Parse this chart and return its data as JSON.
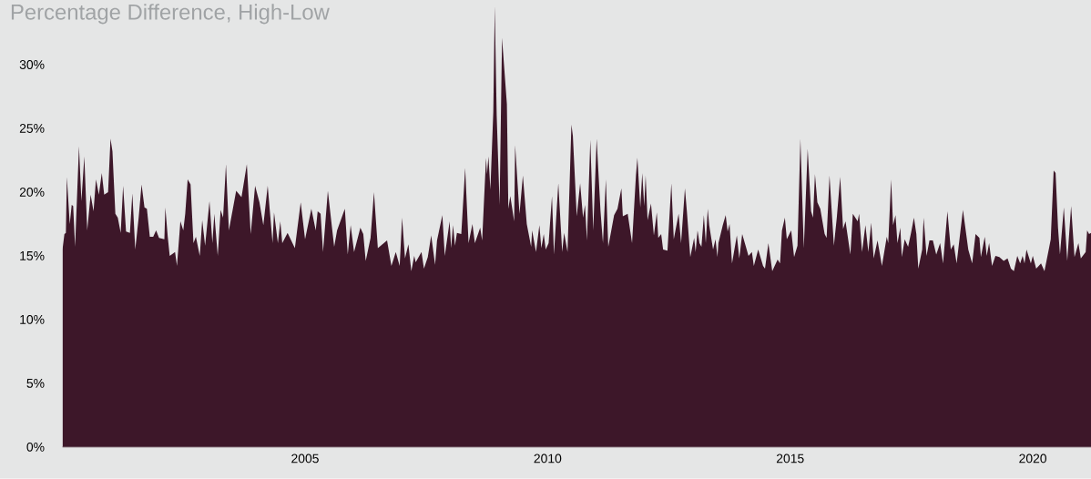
{
  "chart_data": {
    "type": "area",
    "title": "Percentage Difference, High-Low",
    "color": "#3d1729",
    "x": [
      2000.0,
      2000.04,
      2000.07,
      2000.09,
      2000.15,
      2000.19,
      2000.22,
      2000.26,
      2000.34,
      2000.39,
      2000.45,
      2000.51,
      2000.58,
      2000.64,
      2000.69,
      2000.75,
      2000.81,
      2000.86,
      2000.94,
      2000.99,
      2001.03,
      2001.09,
      2001.14,
      2001.2,
      2001.25,
      2001.31,
      2001.39,
      2001.44,
      2001.5,
      2001.57,
      2001.63,
      2001.69,
      2001.74,
      2001.8,
      2001.87,
      2001.93,
      2001.99,
      2002.1,
      2002.12,
      2002.17,
      2002.21,
      2002.32,
      2002.36,
      2002.43,
      2002.49,
      2002.53,
      2002.58,
      2002.64,
      2002.7,
      2002.75,
      2002.83,
      2002.88,
      2002.94,
      2003.03,
      2003.09,
      2003.13,
      2003.2,
      2003.26,
      2003.31,
      2003.37,
      2003.43,
      2003.58,
      2003.69,
      2003.8,
      2003.88,
      2003.97,
      2004.06,
      2004.14,
      2004.23,
      2004.33,
      2004.36,
      2004.44,
      2004.49,
      2004.53,
      2004.64,
      2004.79,
      2004.91,
      2005.0,
      2005.13,
      2005.22,
      2005.26,
      2005.32,
      2005.37,
      2005.47,
      2005.6,
      2005.66,
      2005.82,
      2005.88,
      2005.94,
      2006.01,
      2006.14,
      2006.2,
      2006.25,
      2006.35,
      2006.42,
      2006.5,
      2006.69,
      2006.78,
      2006.87,
      2006.95,
      2007.0,
      2007.06,
      2007.13,
      2007.19,
      2007.25,
      2007.28,
      2007.4,
      2007.45,
      2007.53,
      2007.6,
      2007.68,
      2007.72,
      2007.83,
      2007.88,
      2007.98,
      2008.01,
      2008.05,
      2008.09,
      2008.13,
      2008.22,
      2008.3,
      2008.37,
      2008.45,
      2008.5,
      2008.61,
      2008.65,
      2008.73,
      2008.75,
      2008.78,
      2008.82,
      2008.88,
      2008.91,
      2008.95,
      2009.01,
      2009.06,
      2009.16,
      2009.19,
      2009.23,
      2009.31,
      2009.33,
      2009.42,
      2009.49,
      2009.57,
      2009.66,
      2009.68,
      2009.76,
      2009.83,
      2009.87,
      2009.92,
      2009.96,
      2010.02,
      2010.09,
      2010.13,
      2010.22,
      2010.3,
      2010.34,
      2010.41,
      2010.49,
      2010.52,
      2010.6,
      2010.67,
      2010.73,
      2010.77,
      2010.81,
      2010.88,
      2010.94,
      2011.01,
      2011.09,
      2011.14,
      2011.2,
      2011.25,
      2011.37,
      2011.44,
      2011.52,
      2011.55,
      2011.65,
      2011.74,
      2011.82,
      2011.85,
      2011.91,
      2011.95,
      2011.99,
      2012.02,
      2012.06,
      2012.13,
      2012.19,
      2012.25,
      2012.28,
      2012.34,
      2012.38,
      2012.47,
      2012.55,
      2012.6,
      2012.7,
      2012.75,
      2012.83,
      2012.87,
      2012.94,
      2013.02,
      2013.05,
      2013.09,
      2013.13,
      2013.17,
      2013.22,
      2013.26,
      2013.3,
      2013.33,
      2013.41,
      2013.46,
      2013.5,
      2013.52,
      2013.61,
      2013.67,
      2013.71,
      2013.75,
      2013.8,
      2013.9,
      2013.95,
      2014.01,
      2014.08,
      2014.14,
      2014.21,
      2014.25,
      2014.34,
      2014.44,
      2014.48,
      2014.55,
      2014.63,
      2014.74,
      2014.79,
      2014.83,
      2014.89,
      2014.93,
      2015.02,
      2015.08,
      2015.15,
      2015.21,
      2015.28,
      2015.36,
      2015.43,
      2015.47,
      2015.51,
      2015.56,
      2015.62,
      2015.71,
      2015.75,
      2015.81,
      2015.9,
      2015.96,
      2016.03,
      2016.09,
      2016.14,
      2016.24,
      2016.29,
      2016.39,
      2016.42,
      2016.48,
      2016.55,
      2016.61,
      2016.67,
      2016.72,
      2016.8,
      2016.89,
      2016.99,
      2017.02,
      2017.08,
      2017.12,
      2017.17,
      2017.21,
      2017.27,
      2017.3,
      2017.36,
      2017.43,
      2017.49,
      2017.55,
      2017.6,
      2017.64,
      2017.72,
      2017.75,
      2017.81,
      2017.87,
      2017.94,
      2018.01,
      2018.09,
      2018.15,
      2018.24,
      2018.31,
      2018.37,
      2018.43,
      2018.56,
      2018.67,
      2018.75,
      2018.82,
      2018.9,
      2018.93,
      2019.01,
      2019.05,
      2019.1,
      2019.16,
      2019.23,
      2019.31,
      2019.4,
      2019.48,
      2019.55,
      2019.61,
      2019.68,
      2019.74,
      2019.79,
      2019.83,
      2019.87,
      2019.96,
      2020.0,
      2020.07,
      2020.17,
      2020.24,
      2020.34,
      2020.37,
      2020.43,
      2020.47,
      2020.52,
      2020.56,
      2020.64,
      2020.71,
      2020.79,
      2020.86,
      2020.94,
      2020.99,
      2021.09,
      2021.12,
      2021.16,
      2021.2
    ],
    "values": [
      15.5,
      16.7,
      16.8,
      21.2,
      17.5,
      19.0,
      18.9,
      15.7,
      23.6,
      19.3,
      22.8,
      17.0,
      19.8,
      18.5,
      21.0,
      19.8,
      21.5,
      19.8,
      20.0,
      24.2,
      23.2,
      18.3,
      18.0,
      16.8,
      20.5,
      16.9,
      16.8,
      19.9,
      15.5,
      18.0,
      20.6,
      18.8,
      18.7,
      16.5,
      16.5,
      17.0,
      16.4,
      16.3,
      18.8,
      16.5,
      15.0,
      15.3,
      14.2,
      17.7,
      17.0,
      18.3,
      21.0,
      20.6,
      16.0,
      16.5,
      15.0,
      17.8,
      15.8,
      19.3,
      16.0,
      18.3,
      15.0,
      18.6,
      18.0,
      22.2,
      17.0,
      20.1,
      19.6,
      22.2,
      16.7,
      20.5,
      19.2,
      17.4,
      20.5,
      16.0,
      18.4,
      16.0,
      17.7,
      16.0,
      16.8,
      15.6,
      19.2,
      16.3,
      18.7,
      17.0,
      18.5,
      18.3,
      15.3,
      20.1,
      15.7,
      17.0,
      18.7,
      15.1,
      17.4,
      15.3,
      17.2,
      16.7,
      14.6,
      16.4,
      20.0,
      15.6,
      16.2,
      14.2,
      15.3,
      14.2,
      18.0,
      14.8,
      15.9,
      13.8,
      15.0,
      14.5,
      15.3,
      14.0,
      14.9,
      16.6,
      14.3,
      16.2,
      18.2,
      15.0,
      17.7,
      15.6,
      17.4,
      15.8,
      16.8,
      16.7,
      21.9,
      16.0,
      17.5,
      16.0,
      17.2,
      16.2,
      22.7,
      21.4,
      22.8,
      20.2,
      26.3,
      34.6,
      26.0,
      19.0,
      32.1,
      26.9,
      18.7,
      19.7,
      17.7,
      23.7,
      18.3,
      21.3,
      17.5,
      15.7,
      17.0,
      15.3,
      17.4,
      15.6,
      16.7,
      15.5,
      16.0,
      19.7,
      15.1,
      20.7,
      15.3,
      16.8,
      15.3,
      25.3,
      24.4,
      18.1,
      20.7,
      18.0,
      19.0,
      16.2,
      24.1,
      17.0,
      24.2,
      18.5,
      16.0,
      21.0,
      15.7,
      18.2,
      18.7,
      20.3,
      18.1,
      18.3,
      16.0,
      21.3,
      22.7,
      18.8,
      21.5,
      18.9,
      21.3,
      17.8,
      19.1,
      16.6,
      18.4,
      16.4,
      16.7,
      15.5,
      15.4,
      20.7,
      16.3,
      18.3,
      16.0,
      20.3,
      18.5,
      14.9,
      16.4,
      15.3,
      17.0,
      16.0,
      15.7,
      18.2,
      16.0,
      18.7,
      17.4,
      15.5,
      16.3,
      14.9,
      16.0,
      17.4,
      18.2,
      16.9,
      17.5,
      14.4,
      16.6,
      14.8,
      16.7,
      15.8,
      15.0,
      15.3,
      14.2,
      15.5,
      14.2,
      14.0,
      16.0,
      13.8,
      14.7,
      14.4,
      17.0,
      18.0,
      16.3,
      17.0,
      14.9,
      15.8,
      24.2,
      15.6,
      23.4,
      18.5,
      18.0,
      21.4,
      19.2,
      18.7,
      16.7,
      16.4,
      21.3,
      15.8,
      18.0,
      21.2,
      17.1,
      17.7,
      15.1,
      18.3,
      17.7,
      18.3,
      15.3,
      17.4,
      15.3,
      17.6,
      14.8,
      16.2,
      14.2,
      16.5,
      16.0,
      21.0,
      17.4,
      18.2,
      16.0,
      17.2,
      14.9,
      16.3,
      15.7,
      16.8,
      18.0,
      16.7,
      14.0,
      15.5,
      18.0,
      15.0,
      16.2,
      16.2,
      15.1,
      16.0,
      14.4,
      18.5,
      15.5,
      15.9,
      14.4,
      18.6,
      15.5,
      14.4,
      16.7,
      16.4,
      14.9,
      16.5,
      15.0,
      16.0,
      14.2,
      15.0,
      14.9,
      14.6,
      14.8,
      14.0,
      13.8,
      15.0,
      14.4,
      15.0,
      14.4,
      15.5,
      14.4,
      15.0,
      14.0,
      14.4,
      13.8,
      15.7,
      16.3,
      21.7,
      21.5,
      17.2,
      15.1,
      18.8,
      14.6,
      18.9,
      14.9,
      16.0,
      14.8,
      15.3,
      17.0,
      16.7,
      16.8
    ],
    "xlim": [
      2000,
      2021.2
    ],
    "ylim": [
      0,
      35
    ],
    "xticks": [
      2005,
      2010,
      2015,
      2020
    ],
    "yticks": [
      {
        "value": 0,
        "label": "0%"
      },
      {
        "value": 5,
        "label": "5%"
      },
      {
        "value": 10,
        "label": "10%"
      },
      {
        "value": 15,
        "label": "15%"
      },
      {
        "value": 20,
        "label": "20%"
      },
      {
        "value": 25,
        "label": "25%"
      },
      {
        "value": 30,
        "label": "30%"
      }
    ]
  }
}
